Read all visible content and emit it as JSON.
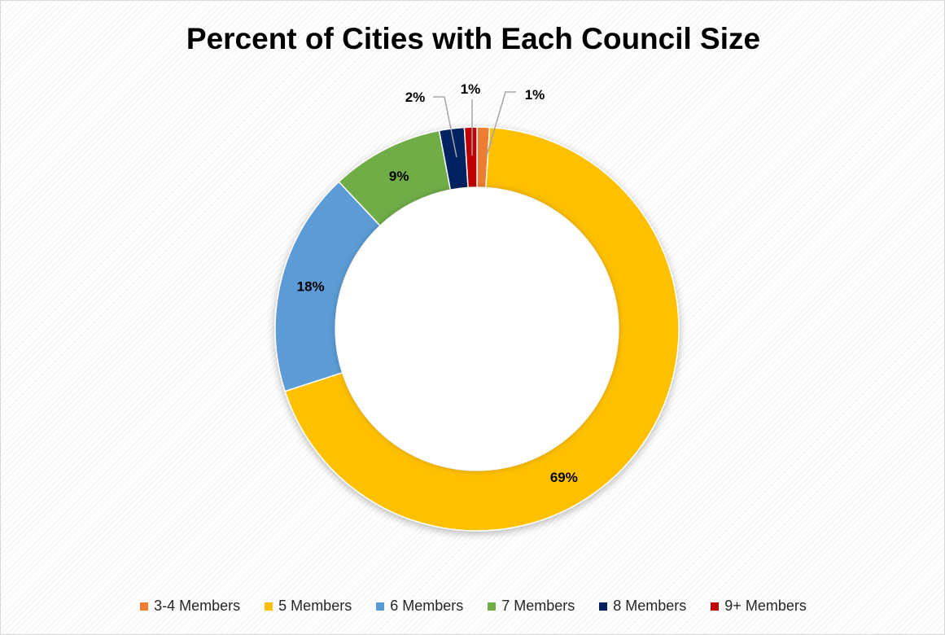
{
  "chart_data": {
    "type": "pie",
    "title": "Percent of Cities with Each Council Size",
    "categories": [
      "3-4 Members",
      "5 Members",
      "6 Members",
      "7 Members",
      "8 Members",
      "9+ Members"
    ],
    "values": [
      1,
      69,
      18,
      9,
      2,
      1
    ],
    "data_labels": [
      "1%",
      "69%",
      "18%",
      "9%",
      "2%",
      "1%"
    ],
    "colors": [
      "#ED7D31",
      "#FFC000",
      "#5B9BD5",
      "#70AD47",
      "#002060",
      "#C00000"
    ],
    "legend_position": "bottom",
    "style": "donut"
  }
}
